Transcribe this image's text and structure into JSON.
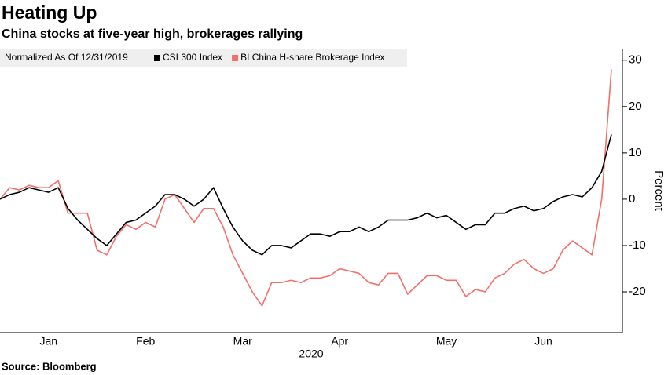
{
  "chart_data": {
    "type": "line",
    "title": "Heating Up",
    "subtitle": "China stocks at five-year high, brokerages rallying",
    "legend_title": "Normalized As Of 12/31/2019",
    "x_label": "2020",
    "y_label": "Percent",
    "source": "Source: Bloomberg",
    "categories": [
      null,
      null,
      null,
      null,
      null,
      "Jan",
      null,
      null,
      null,
      null,
      null,
      null,
      null,
      null,
      null,
      "Feb",
      null,
      null,
      null,
      null,
      null,
      null,
      null,
      null,
      null,
      "Mar",
      null,
      null,
      null,
      null,
      null,
      null,
      null,
      null,
      null,
      "Apr",
      null,
      null,
      null,
      null,
      null,
      null,
      null,
      null,
      null,
      null,
      "May",
      null,
      null,
      null,
      null,
      null,
      null,
      null,
      null,
      null,
      "Jun",
      null,
      null,
      null,
      null,
      null,
      null,
      null
    ],
    "series": [
      {
        "name": "CSI 300 Index",
        "color": "#000000",
        "values": [
          0,
          1,
          1.5,
          2.5,
          2,
          1.5,
          2.5,
          -2,
          -4.5,
          -6.5,
          -8.5,
          -10,
          -7.5,
          -5,
          -4.5,
          -3,
          -1.5,
          1,
          1,
          0,
          -1.5,
          0,
          2.5,
          -2,
          -6,
          -9,
          -11,
          -12,
          -10,
          -10,
          -10.5,
          -9,
          -7.5,
          -7.5,
          -8,
          -7,
          -7,
          -6,
          -7,
          -6,
          -4.5,
          -4.5,
          -4.5,
          -4,
          -3,
          -4,
          -3.5,
          -5,
          -6.5,
          -5.5,
          -5.5,
          -3,
          -3,
          -2,
          -1.5,
          -2.5,
          -2,
          -0.5,
          0.5,
          1,
          0.5,
          2.5,
          6,
          14
        ]
      },
      {
        "name": "BI China H-share Brokerage Index",
        "color": "#f0706c",
        "values": [
          0,
          2.5,
          2,
          3,
          2.5,
          2.5,
          4,
          -3,
          -3,
          -3,
          -11,
          -12,
          -8,
          -5.5,
          -6.5,
          -5,
          -6,
          0,
          1,
          -2,
          -5,
          -2,
          -2,
          -6,
          -12,
          -16,
          -20,
          -23,
          -18,
          -18,
          -17.5,
          -18,
          -17,
          -17,
          -16.5,
          -15,
          -15.5,
          -16,
          -18,
          -18.5,
          -16,
          -16,
          -20.5,
          -18.5,
          -16.5,
          -16.5,
          -17.5,
          -17.5,
          -21,
          -19.5,
          -20,
          -17,
          -16,
          -14,
          -13,
          -15,
          -16,
          -15,
          -11,
          -9,
          -10.5,
          -12,
          0,
          28
        ]
      }
    ],
    "ylim": [
      -28.8,
      32.5
    ],
    "yticks": [
      -20,
      -10,
      0,
      10,
      20,
      30
    ],
    "y_axis_side": "right",
    "grid": false
  }
}
